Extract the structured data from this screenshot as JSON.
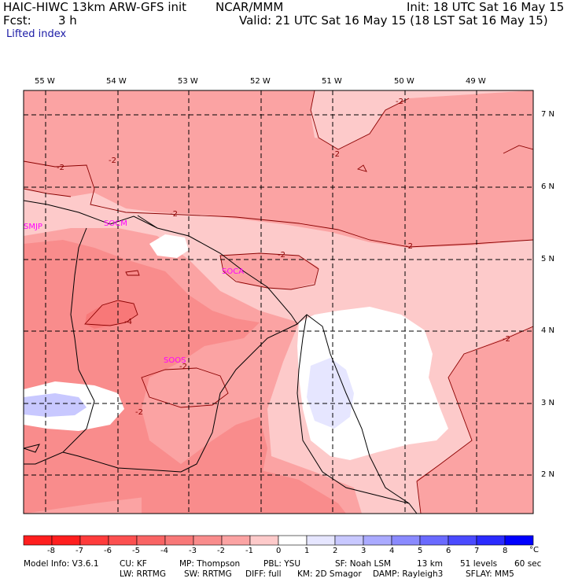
{
  "header": {
    "title": "HAIC-HIWC 13km ARW-GFS init",
    "org": "NCAR/MMM",
    "init": "Init: 18 UTC Sat 16 May 15",
    "fcst_label": "Fcst:",
    "fcst_value": "3 h",
    "valid": "Valid: 21 UTC Sat 16 May 15 (18 LST Sat 16 May 15)",
    "field": "Lifted index"
  },
  "map": {
    "lon_labels": [
      "55 W",
      "54 W",
      "53 W",
      "52 W",
      "51 W",
      "50 W",
      "49 W"
    ],
    "lat_labels": [
      "7 N",
      "6 N",
      "5 N",
      "4 N",
      "3 N",
      "2 N"
    ],
    "stations": [
      "SMJP",
      "SOCM",
      "SOCA",
      "SOOS"
    ],
    "contour_labels": [
      "-2",
      "-2",
      "-2",
      "-2",
      "-2",
      "-2",
      "-2",
      "-2",
      "-2",
      "-4",
      "-2"
    ]
  },
  "colorbar": {
    "ticks": [
      "-8",
      "-7",
      "-6",
      "-5",
      "-4",
      "-3",
      "-2",
      "-1",
      "0",
      "1",
      "2",
      "3",
      "4",
      "5",
      "6",
      "7",
      "8"
    ],
    "unit": "°C",
    "colors": [
      "#ff1e1e",
      "#ff3c3c",
      "#fc5050",
      "#f96464",
      "#f87878",
      "#f98c8c",
      "#fba3a3",
      "#fdcaca",
      "#ffffff",
      "#e6e6ff",
      "#c8c8ff",
      "#aaaaff",
      "#8a8aff",
      "#6a6aff",
      "#4a4aff",
      "#2a2aff",
      "#0000ff"
    ]
  },
  "footer": {
    "line1": [
      "Model Info: V3.6.1",
      "CU: KF",
      "MP: Thompson",
      "PBL: YSU",
      "SF: Noah LSM",
      "13 km",
      "51 levels",
      "60 sec"
    ],
    "line2": [
      "LW: RRTMG",
      "SW: RRTMG",
      "DIFF: full",
      "KM: 2D Smagor",
      "DAMP: Rayleigh3",
      "SFLAY: MM5"
    ]
  }
}
